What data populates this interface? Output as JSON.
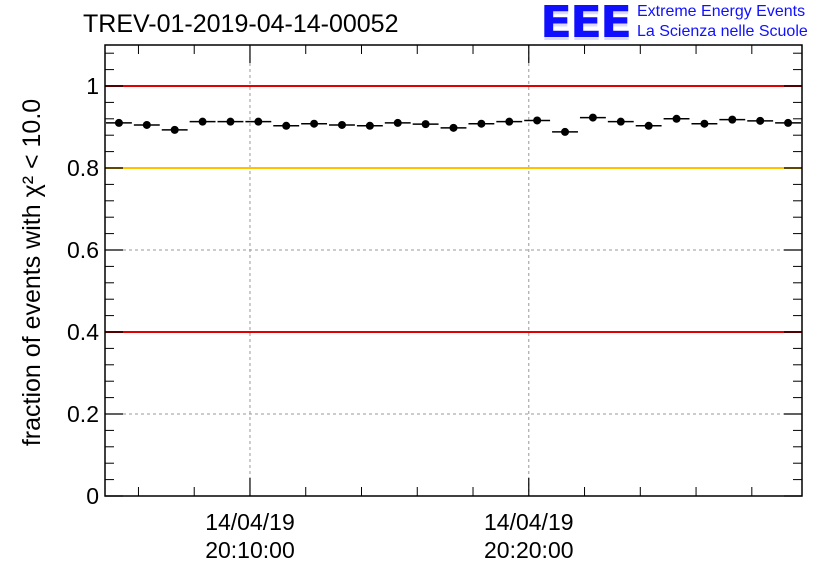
{
  "header": {
    "title": "TREV-01-2019-04-14-00052"
  },
  "logo": {
    "mark": "EEE",
    "line1": "Extreme Energy Events",
    "line2": "La Scienza nelle Scuole",
    "color": "#1010ff"
  },
  "chart_data": {
    "type": "scatter",
    "title": "TREV-01-2019-04-14-00052",
    "xlabel": "",
    "ylabel": "fraction of events with χ² < 10.0",
    "xlim": [
      0,
      25
    ],
    "ylim": [
      0,
      1.1
    ],
    "yticks": [
      0,
      0.2,
      0.4,
      0.6,
      0.8,
      1
    ],
    "ytick_labels": [
      "0",
      "0.2",
      "0.4",
      "0.6",
      "0.8",
      "1"
    ],
    "xticks": [
      {
        "x": 5.2,
        "label_date": "14/04/19",
        "label_time": "20:10:00"
      },
      {
        "x": 15.2,
        "label_date": "14/04/19",
        "label_time": "20:20:00"
      }
    ],
    "grid": true,
    "reference_lines": [
      {
        "y": 1.0,
        "color": "#e00000"
      },
      {
        "y": 0.8,
        "color": "#ffc000"
      },
      {
        "y": 0.4,
        "color": "#e00000"
      }
    ],
    "marker_color": "#000000",
    "bin_width": 1,
    "x": [
      0.5,
      1.5,
      2.5,
      3.5,
      4.5,
      5.5,
      6.5,
      7.5,
      8.5,
      9.5,
      10.5,
      11.5,
      12.5,
      13.5,
      14.5,
      15.5,
      16.5,
      17.5,
      18.5,
      19.5,
      20.5,
      21.5,
      22.5,
      23.5,
      24.5
    ],
    "values": [
      0.91,
      0.905,
      0.893,
      0.913,
      0.913,
      0.913,
      0.903,
      0.908,
      0.905,
      0.903,
      0.91,
      0.907,
      0.898,
      0.908,
      0.913,
      0.916,
      0.888,
      0.923,
      0.913,
      0.903,
      0.92,
      0.908,
      0.918,
      0.915,
      0.91
    ]
  }
}
